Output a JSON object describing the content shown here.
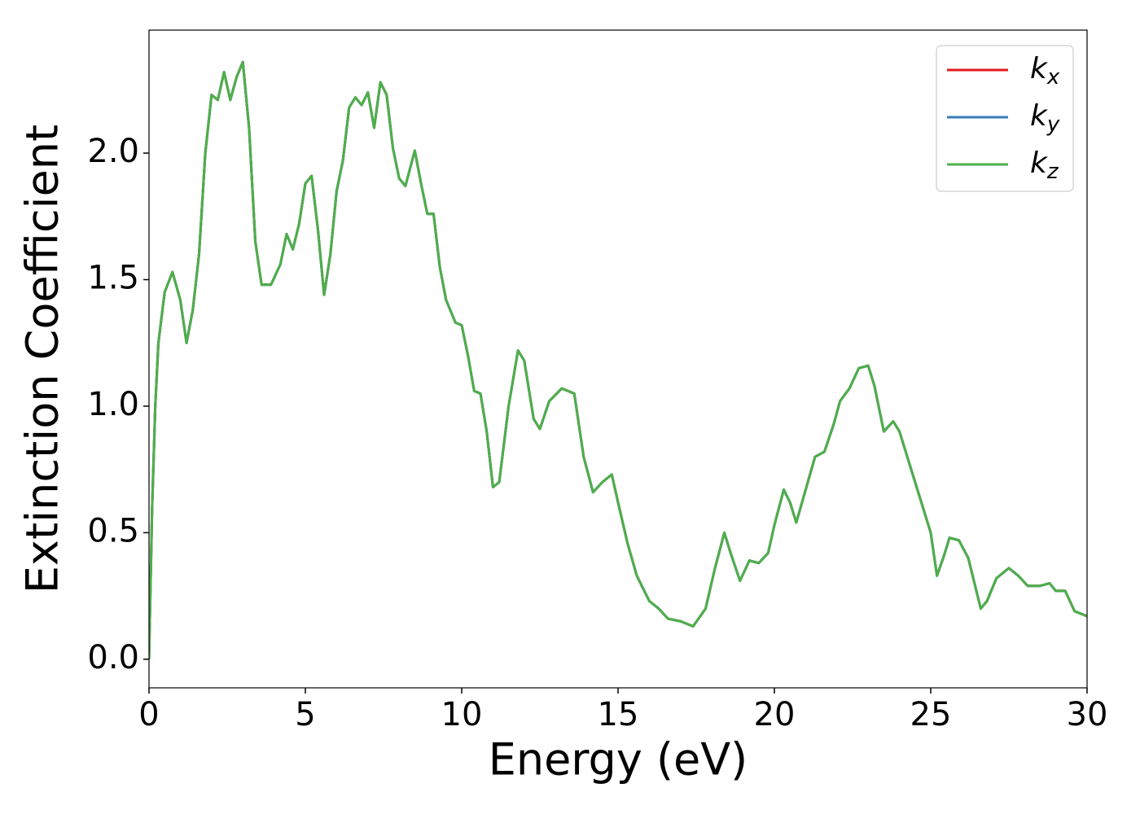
{
  "chart_data": {
    "type": "line",
    "xlabel": "Energy (eV)",
    "ylabel": "Extinction Coefficient",
    "x": [
      0,
      0.1,
      0.2,
      0.3,
      0.5,
      0.75,
      1.0,
      1.2,
      1.4,
      1.6,
      1.8,
      2.0,
      2.2,
      2.4,
      2.6,
      2.8,
      3.0,
      3.2,
      3.4,
      3.6,
      3.9,
      4.2,
      4.4,
      4.6,
      4.8,
      5.0,
      5.2,
      5.4,
      5.6,
      5.8,
      6.0,
      6.2,
      6.4,
      6.6,
      6.8,
      7.0,
      7.2,
      7.4,
      7.6,
      7.8,
      8.0,
      8.2,
      8.5,
      8.7,
      8.9,
      9.1,
      9.3,
      9.5,
      9.8,
      10.0,
      10.2,
      10.4,
      10.6,
      10.8,
      11.0,
      11.2,
      11.5,
      11.8,
      12.0,
      12.3,
      12.5,
      12.8,
      13.2,
      13.6,
      13.9,
      14.2,
      14.5,
      14.8,
      15.0,
      15.3,
      15.6,
      16.0,
      16.3,
      16.6,
      17.0,
      17.4,
      17.8,
      18.1,
      18.4,
      18.6,
      18.9,
      19.2,
      19.5,
      19.8,
      20.0,
      20.3,
      20.5,
      20.7,
      21.0,
      21.3,
      21.6,
      21.9,
      22.1,
      22.4,
      22.7,
      23.0,
      23.2,
      23.5,
      23.8,
      24.0,
      24.3,
      24.7,
      25.0,
      25.2,
      25.4,
      25.6,
      25.9,
      26.2,
      26.4,
      26.6,
      26.8,
      27.1,
      27.5,
      27.8,
      28.1,
      28.5,
      28.8,
      29.0,
      29.3,
      29.6,
      30.0
    ],
    "series": [
      {
        "name": "k_x",
        "color": "#e41a1c",
        "values": [
          0,
          0.6,
          1.0,
          1.25,
          1.45,
          1.53,
          1.42,
          1.25,
          1.38,
          1.6,
          2.0,
          2.23,
          2.21,
          2.32,
          2.21,
          2.3,
          2.36,
          2.1,
          1.65,
          1.48,
          1.48,
          1.56,
          1.68,
          1.62,
          1.72,
          1.88,
          1.91,
          1.7,
          1.44,
          1.6,
          1.85,
          1.97,
          2.18,
          2.22,
          2.19,
          2.24,
          2.1,
          2.28,
          2.23,
          2.02,
          1.9,
          1.87,
          2.01,
          1.88,
          1.76,
          1.76,
          1.55,
          1.42,
          1.33,
          1.32,
          1.2,
          1.06,
          1.05,
          0.9,
          0.68,
          0.7,
          1.0,
          1.22,
          1.18,
          0.95,
          0.91,
          1.02,
          1.07,
          1.05,
          0.8,
          0.66,
          0.7,
          0.73,
          0.62,
          0.46,
          0.33,
          0.23,
          0.2,
          0.16,
          0.15,
          0.13,
          0.2,
          0.36,
          0.5,
          0.42,
          0.31,
          0.39,
          0.38,
          0.42,
          0.53,
          0.67,
          0.62,
          0.54,
          0.67,
          0.8,
          0.82,
          0.93,
          1.02,
          1.07,
          1.15,
          1.16,
          1.08,
          0.9,
          0.94,
          0.9,
          0.78,
          0.62,
          0.5,
          0.33,
          0.4,
          0.48,
          0.47,
          0.4,
          0.3,
          0.2,
          0.23,
          0.32,
          0.36,
          0.33,
          0.29,
          0.29,
          0.3,
          0.27,
          0.27,
          0.19,
          0.17
        ]
      },
      {
        "name": "k_y",
        "color": "#377eb8",
        "values": [
          0,
          0.6,
          1.0,
          1.25,
          1.45,
          1.53,
          1.42,
          1.25,
          1.38,
          1.6,
          2.0,
          2.23,
          2.21,
          2.32,
          2.21,
          2.3,
          2.36,
          2.1,
          1.65,
          1.48,
          1.48,
          1.56,
          1.68,
          1.62,
          1.72,
          1.88,
          1.91,
          1.7,
          1.44,
          1.6,
          1.85,
          1.97,
          2.18,
          2.22,
          2.19,
          2.24,
          2.1,
          2.28,
          2.23,
          2.02,
          1.9,
          1.87,
          2.01,
          1.88,
          1.76,
          1.76,
          1.55,
          1.42,
          1.33,
          1.32,
          1.2,
          1.06,
          1.05,
          0.9,
          0.68,
          0.7,
          1.0,
          1.22,
          1.18,
          0.95,
          0.91,
          1.02,
          1.07,
          1.05,
          0.8,
          0.66,
          0.7,
          0.73,
          0.62,
          0.46,
          0.33,
          0.23,
          0.2,
          0.16,
          0.15,
          0.13,
          0.2,
          0.36,
          0.5,
          0.42,
          0.31,
          0.39,
          0.38,
          0.42,
          0.53,
          0.67,
          0.62,
          0.54,
          0.67,
          0.8,
          0.82,
          0.93,
          1.02,
          1.07,
          1.15,
          1.16,
          1.08,
          0.9,
          0.94,
          0.9,
          0.78,
          0.62,
          0.5,
          0.33,
          0.4,
          0.48,
          0.47,
          0.4,
          0.3,
          0.2,
          0.23,
          0.32,
          0.36,
          0.33,
          0.29,
          0.29,
          0.3,
          0.27,
          0.27,
          0.19,
          0.17
        ]
      },
      {
        "name": "k_z",
        "color": "#4daf4a",
        "values": [
          0,
          0.6,
          1.0,
          1.25,
          1.45,
          1.53,
          1.42,
          1.25,
          1.38,
          1.6,
          2.0,
          2.23,
          2.21,
          2.32,
          2.21,
          2.3,
          2.36,
          2.1,
          1.65,
          1.48,
          1.48,
          1.56,
          1.68,
          1.62,
          1.72,
          1.88,
          1.91,
          1.7,
          1.44,
          1.6,
          1.85,
          1.97,
          2.18,
          2.22,
          2.19,
          2.24,
          2.1,
          2.28,
          2.23,
          2.02,
          1.9,
          1.87,
          2.01,
          1.88,
          1.76,
          1.76,
          1.55,
          1.42,
          1.33,
          1.32,
          1.2,
          1.06,
          1.05,
          0.9,
          0.68,
          0.7,
          1.0,
          1.22,
          1.18,
          0.95,
          0.91,
          1.02,
          1.07,
          1.05,
          0.8,
          0.66,
          0.7,
          0.73,
          0.62,
          0.46,
          0.33,
          0.23,
          0.2,
          0.16,
          0.15,
          0.13,
          0.2,
          0.36,
          0.5,
          0.42,
          0.31,
          0.39,
          0.38,
          0.42,
          0.53,
          0.67,
          0.62,
          0.54,
          0.67,
          0.8,
          0.82,
          0.93,
          1.02,
          1.07,
          1.15,
          1.16,
          1.08,
          0.9,
          0.94,
          0.9,
          0.78,
          0.62,
          0.5,
          0.33,
          0.4,
          0.48,
          0.47,
          0.4,
          0.3,
          0.2,
          0.23,
          0.32,
          0.36,
          0.33,
          0.29,
          0.29,
          0.3,
          0.27,
          0.27,
          0.19,
          0.17
        ]
      }
    ],
    "xlim": [
      0,
      30
    ],
    "xticks": [
      0,
      5,
      10,
      15,
      20,
      25,
      30
    ],
    "ylim": [
      -0.113,
      2.486
    ],
    "yticks": [
      {
        "value": 0,
        "label": "0.0"
      },
      0.5,
      {
        "value": 1,
        "label": "1.0"
      },
      1.5,
      {
        "value": 2,
        "label": "2.0"
      }
    ],
    "legend": "upper right",
    "grid": false
  }
}
